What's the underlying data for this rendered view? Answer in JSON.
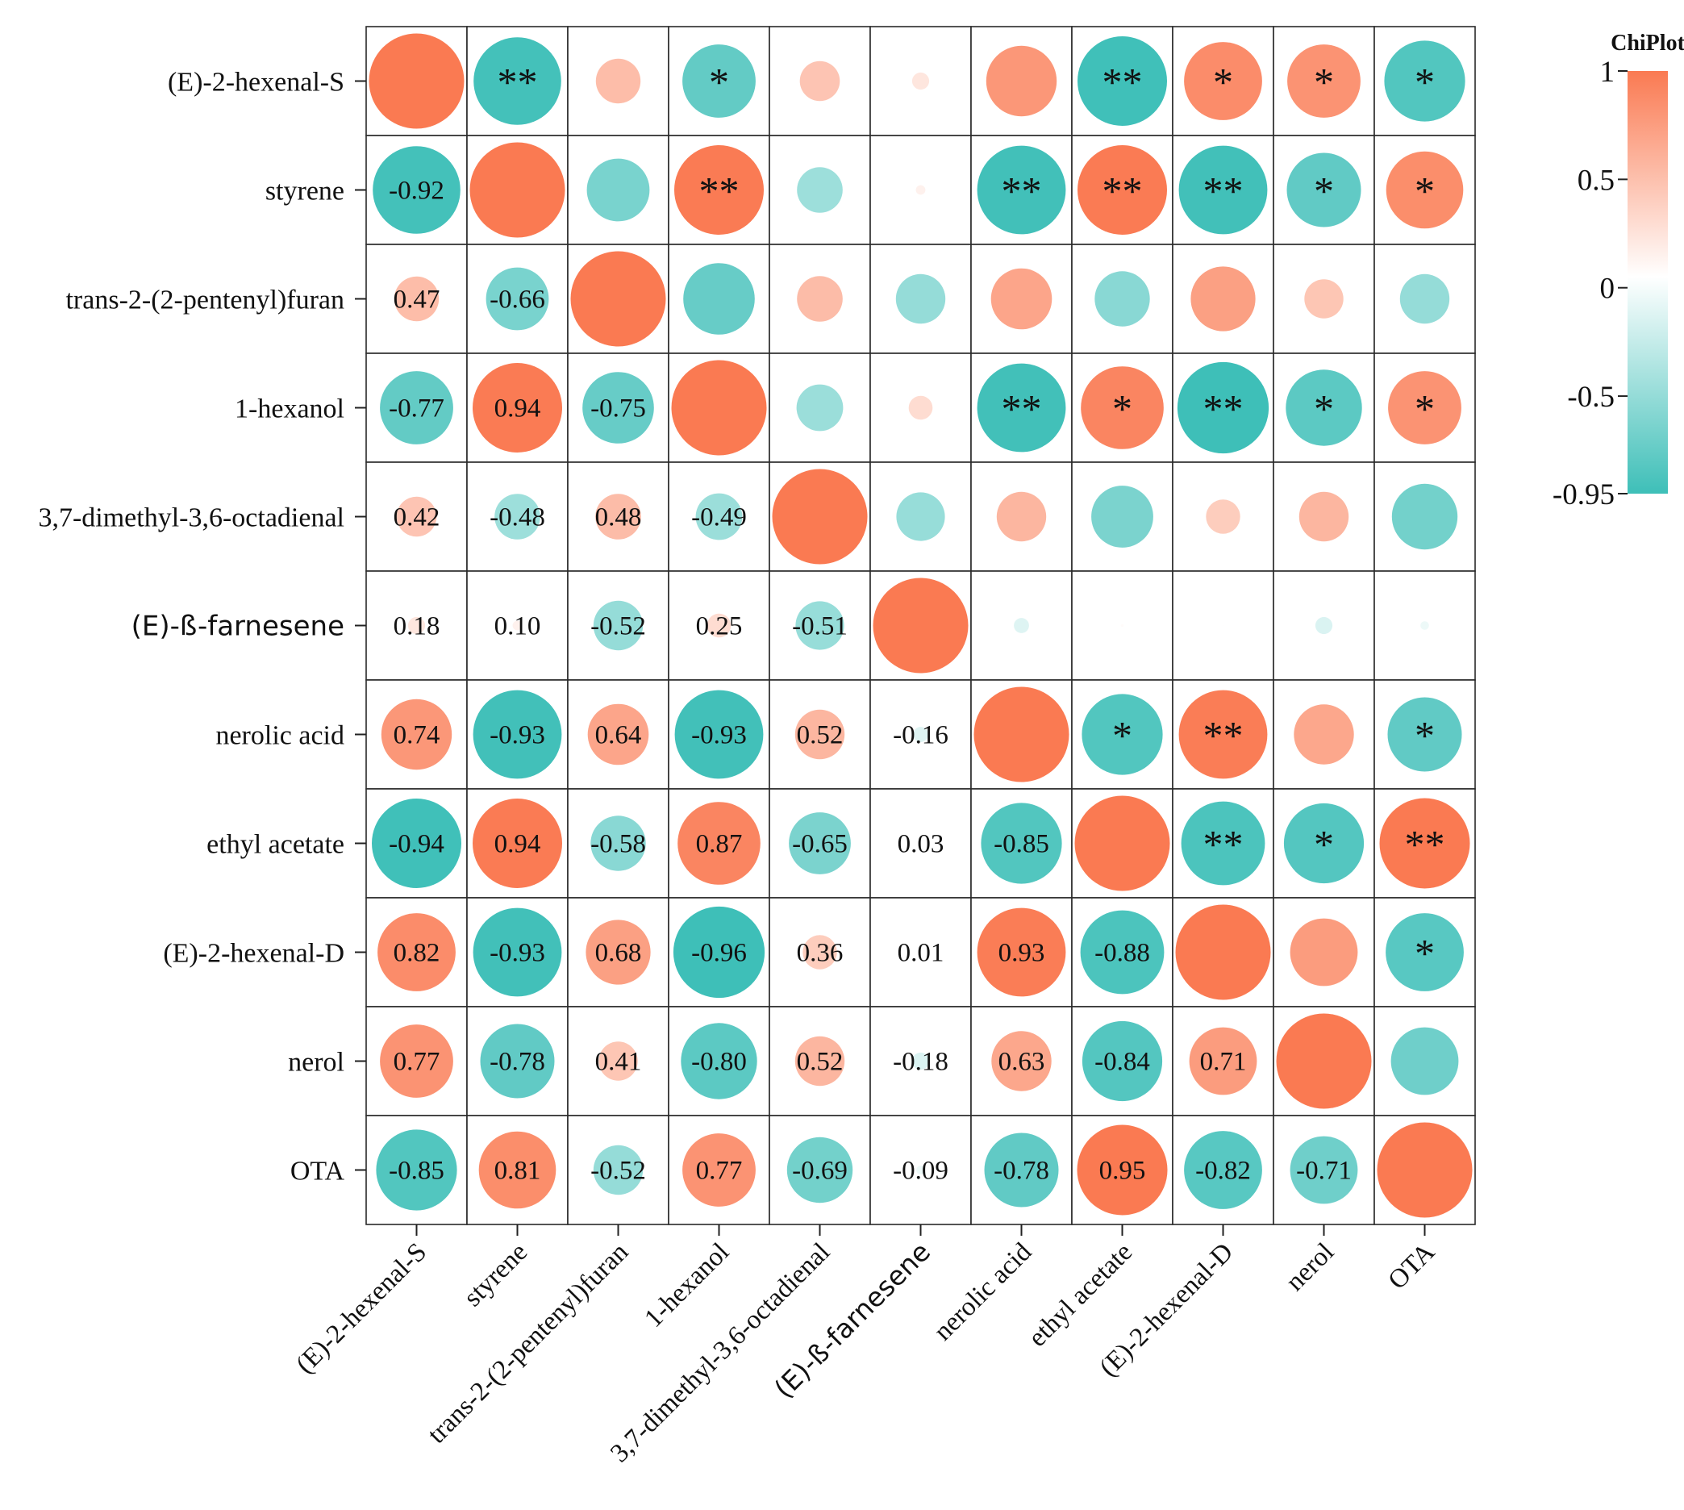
{
  "chart_data": {
    "type": "heatmap",
    "variables": [
      "(E)-2-hexenal-S",
      "styrene",
      "trans-2-(2-pentenyl)furan",
      "1-hexanol",
      "3,7-dimethyl-3,6-octadienal",
      "(E)-ß-farnesene",
      "nerolic acid",
      "ethyl acetate",
      "(E)-2-hexenal-D",
      "nerol",
      "OTA"
    ],
    "correlation_matrix": [
      [
        1.0,
        -0.92,
        0.47,
        -0.77,
        0.42,
        0.18,
        0.74,
        -0.94,
        0.82,
        0.77,
        -0.85
      ],
      [
        -0.92,
        1.0,
        -0.66,
        0.94,
        -0.48,
        0.1,
        -0.93,
        0.94,
        -0.93,
        -0.78,
        0.81
      ],
      [
        0.47,
        -0.66,
        1.0,
        -0.75,
        0.48,
        -0.52,
        0.64,
        -0.58,
        0.68,
        0.41,
        -0.52
      ],
      [
        -0.77,
        0.94,
        -0.75,
        1.0,
        -0.49,
        0.25,
        -0.93,
        0.87,
        -0.96,
        -0.8,
        0.77
      ],
      [
        0.42,
        -0.48,
        0.48,
        -0.49,
        1.0,
        -0.51,
        0.52,
        -0.65,
        0.36,
        0.52,
        -0.69
      ],
      [
        0.18,
        0.1,
        -0.52,
        0.25,
        -0.51,
        1.0,
        -0.16,
        0.03,
        0.01,
        -0.18,
        -0.09
      ],
      [
        0.74,
        -0.93,
        0.64,
        -0.93,
        0.52,
        -0.16,
        1.0,
        -0.85,
        0.93,
        0.63,
        -0.78
      ],
      [
        -0.94,
        0.94,
        -0.58,
        0.87,
        -0.65,
        0.03,
        -0.85,
        1.0,
        -0.88,
        -0.84,
        0.95
      ],
      [
        0.82,
        -0.93,
        0.68,
        -0.96,
        0.36,
        0.01,
        0.93,
        -0.88,
        1.0,
        0.71,
        -0.82
      ],
      [
        0.77,
        -0.78,
        0.41,
        -0.8,
        0.52,
        -0.18,
        0.63,
        -0.84,
        0.71,
        1.0,
        -0.71
      ],
      [
        -0.85,
        0.81,
        -0.52,
        0.77,
        -0.69,
        -0.09,
        -0.78,
        0.95,
        -0.82,
        -0.71,
        1.0
      ]
    ],
    "value_labels": [
      [
        "",
        "",
        "",
        "",
        "",
        "",
        "",
        "",
        "",
        "",
        ""
      ],
      [
        "-0.92",
        "",
        "",
        "",
        "",
        "",
        "",
        "",
        "",
        "",
        ""
      ],
      [
        "0.47",
        "-0.66",
        "",
        "",
        "",
        "",
        "",
        "",
        "",
        "",
        ""
      ],
      [
        "-0.77",
        "0.94",
        "-0.75",
        "",
        "",
        "",
        "",
        "",
        "",
        "",
        ""
      ],
      [
        "0.42",
        "-0.48",
        "0.48",
        "-0.49",
        "",
        "",
        "",
        "",
        "",
        "",
        ""
      ],
      [
        "0.18",
        "0.10",
        "-0.52",
        "0.25",
        "-0.51",
        "",
        "",
        "",
        "",
        "",
        ""
      ],
      [
        "0.74",
        "-0.93",
        "0.64",
        "-0.93",
        "0.52",
        "-0.16",
        "",
        "",
        "",
        "",
        ""
      ],
      [
        "-0.94",
        "0.94",
        "-0.58",
        "0.87",
        "-0.65",
        "0.03",
        "-0.85",
        "",
        "",
        "",
        ""
      ],
      [
        "0.82",
        "-0.93",
        "0.68",
        "-0.96",
        "0.36",
        "0.01",
        "0.93",
        "-0.88",
        "",
        "",
        ""
      ],
      [
        "0.77",
        "-0.78",
        "0.41",
        "-0.80",
        "0.52",
        "-0.18",
        "0.63",
        "-0.84",
        "0.71",
        "",
        ""
      ],
      [
        "-0.85",
        "0.81",
        "-0.52",
        "0.77",
        "-0.69",
        "-0.09",
        "-0.78",
        "0.95",
        "-0.82",
        "-0.71",
        ""
      ]
    ],
    "significance": [
      [
        "",
        "**",
        "",
        "*",
        "",
        "",
        "",
        "**",
        "*",
        "*",
        "*"
      ],
      [
        "",
        "",
        "",
        "**",
        "",
        "",
        "**",
        "**",
        "**",
        "*",
        "*"
      ],
      [
        "",
        "",
        "",
        "",
        "",
        "",
        "",
        "",
        "",
        "",
        ""
      ],
      [
        "",
        "",
        "",
        "",
        "",
        "",
        "**",
        "*",
        "**",
        "*",
        "*"
      ],
      [
        "",
        "",
        "",
        "",
        "",
        "",
        "",
        "",
        "",
        "",
        ""
      ],
      [
        "",
        "",
        "",
        "",
        "",
        "",
        "",
        "",
        "",
        "",
        ""
      ],
      [
        "",
        "",
        "",
        "",
        "",
        "",
        "",
        "*",
        "**",
        "",
        "*"
      ],
      [
        "",
        "",
        "",
        "",
        "",
        "",
        "",
        "",
        "**",
        "*",
        "**"
      ],
      [
        "",
        "",
        "",
        "",
        "",
        "",
        "",
        "",
        "",
        "",
        "*"
      ],
      [
        "",
        "",
        "",
        "",
        "",
        "",
        "",
        "",
        "",
        "",
        ""
      ],
      [
        "",
        "",
        "",
        "",
        "",
        "",
        "",
        "",
        "",
        "",
        ""
      ]
    ],
    "legend": {
      "title": "ChiPlot",
      "ticks": [
        {
          "value": 1,
          "label": "1"
        },
        {
          "value": 0.5,
          "label": "0.5"
        },
        {
          "value": 0,
          "label": "0"
        },
        {
          "value": -0.5,
          "label": "-0.5"
        },
        {
          "value": -0.95,
          "label": "-0.95"
        }
      ],
      "range": [
        -0.95,
        1
      ],
      "colors": {
        "positive": "#fa7a52",
        "mid": "#ffffff",
        "negative": "#3ebfb8"
      }
    }
  }
}
